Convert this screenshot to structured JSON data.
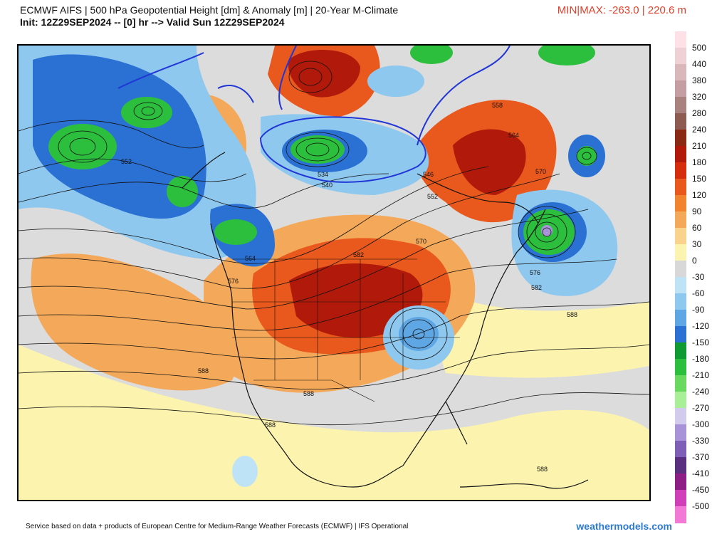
{
  "header": {
    "title_line1": "ECMWF AIFS | 500 hPa Geopotential Height [dm] & Anomaly [m] | 20-Year M-Climate",
    "title_line2": "Init: 12Z29SEP2024 -- [0] hr --> Valid Sun 12Z29SEP2024",
    "minmax": "MIN|MAX: -263.0 | 220.6 m",
    "minmax_color": "#e0402c"
  },
  "footer": {
    "credit": "Service based on data + products of European Centre for Medium-Range Weather Forecasts (ECMWF) | IFS Operational",
    "brand": "weathermodels.com",
    "brand_color": "#2f7bd1"
  },
  "colorbar": {
    "labels": [
      "500",
      "440",
      "380",
      "320",
      "280",
      "240",
      "210",
      "180",
      "150",
      "120",
      "90",
      "60",
      "30",
      "0",
      "-30",
      "-60",
      "-90",
      "-120",
      "-150",
      "-180",
      "-210",
      "-240",
      "-270",
      "-300",
      "-330",
      "-370",
      "-410",
      "-450",
      "-500"
    ],
    "colors": [
      "#fde1e6",
      "#efd0d4",
      "#d9b7ba",
      "#c49ea2",
      "#a9827f",
      "#8d5b52",
      "#8a2a14",
      "#b11a0a",
      "#d62d0c",
      "#e9581c",
      "#f1852f",
      "#f4a85a",
      "#f9d28c",
      "#fbf4b0",
      "#d8d8d8",
      "#bfe3f6",
      "#8fc8ee",
      "#5fa6e4",
      "#2b71d4",
      "#0f9a32",
      "#2cbf3e",
      "#68d85e",
      "#a8ef98",
      "#d3cbee",
      "#a893d8",
      "#7d5fb7",
      "#5b2f7f",
      "#8e1e86",
      "#d03fb7",
      "#f27ad6"
    ]
  },
  "map": {
    "contour_labels": [
      "552",
      "534",
      "546",
      "540",
      "552",
      "558",
      "564",
      "570",
      "582",
      "570",
      "576",
      "564",
      "576",
      "582",
      "588",
      "588",
      "588",
      "588",
      "588"
    ]
  }
}
